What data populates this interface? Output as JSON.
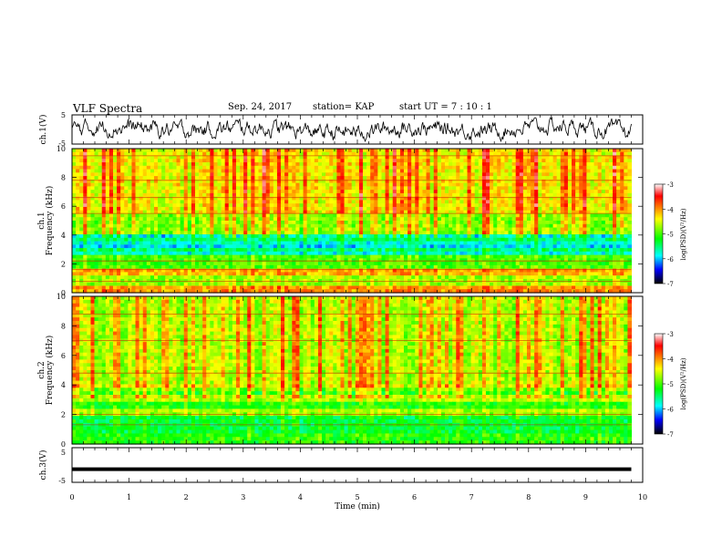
{
  "header": {
    "title": "VLF Spectra",
    "date": "Sep. 24, 2017",
    "station": "station= KAP",
    "start": "start UT =  7 : 10 : 1"
  },
  "chart_data": [
    {
      "type": "line",
      "panel": "ch1-waveform",
      "ylabel": "ch.1(V)",
      "ylim": [
        -5,
        5
      ],
      "yticks": [
        "5",
        "-5"
      ],
      "xlim": [
        0,
        10
      ],
      "series": [
        {
          "color": "#000000"
        }
      ]
    },
    {
      "type": "heatmap",
      "panel": "ch1-spectrogram",
      "ylabel_top": "ch.1",
      "ylabel": "Frequency (kHz)",
      "ylim": [
        0,
        10
      ],
      "yticks": [
        "0",
        "2",
        "4",
        "6",
        "8",
        "10"
      ],
      "xlim": [
        0,
        9.8
      ],
      "colorbar": {
        "label": "log(PSD)(V²/Hz)",
        "range": [
          -7,
          -3
        ],
        "ticks": [
          "-3",
          "-4",
          "-5",
          "-6",
          "-7"
        ],
        "colors": [
          "#ffffff",
          "#ff0000",
          "#ffff00",
          "#00ff00",
          "#00ffff",
          "#0000ff",
          "#000000"
        ]
      }
    },
    {
      "type": "heatmap",
      "panel": "ch2-spectrogram",
      "ylabel_top": "ch.2",
      "ylabel": "Frequency (kHz)",
      "ylim": [
        0,
        10
      ],
      "yticks": [
        "0",
        "2",
        "4",
        "6",
        "8",
        "10"
      ],
      "xlim": [
        0,
        9.8
      ],
      "colorbar": {
        "label": "log(PSD)(V²/Hz)",
        "range": [
          -7,
          -3
        ],
        "ticks": [
          "-3",
          "-4",
          "-5",
          "-6",
          "-7"
        ],
        "colors": [
          "#ffffff",
          "#ff0000",
          "#ffff00",
          "#00ff00",
          "#00ffff",
          "#0000ff",
          "#000000"
        ]
      }
    },
    {
      "type": "line",
      "panel": "ch3-waveform",
      "ylabel": "ch.3(V)",
      "ylim": [
        -5,
        5
      ],
      "yticks": [
        "5",
        "-5"
      ],
      "value": -1.2,
      "xlim": [
        0,
        9.8
      ],
      "xlabel": "Time (min)",
      "xticks": [
        "0",
        "1",
        "2",
        "3",
        "4",
        "5",
        "6",
        "7",
        "8",
        "9",
        "10"
      ]
    }
  ]
}
